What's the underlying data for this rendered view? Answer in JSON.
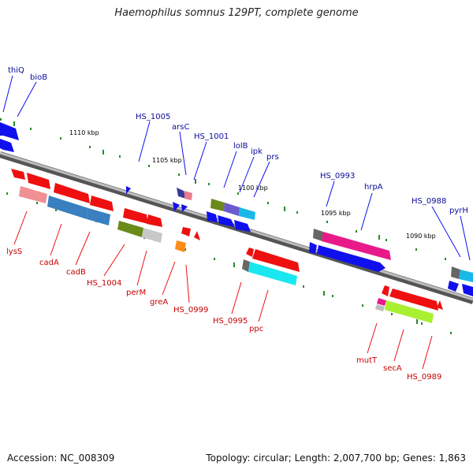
{
  "header": {
    "title": "Haemophilus somnus 129PT, complete genome"
  },
  "footer": {
    "accession": "Accession: NC_008309",
    "topology": "Topology: circular; Length: 2,007,700 bp; Genes: 1,863"
  },
  "kbp_ticks": [
    "1110 kbp",
    "1105 kbp",
    "1100 kbp",
    "1095 kbp",
    "1090 kbp"
  ],
  "upper_labels": [
    "thiQ",
    "bioB",
    "HS_1005",
    "arsC",
    "HS_1001",
    "lolB",
    "ipk",
    "prs",
    "HS_0993",
    "hrpA",
    "HS_0988",
    "pyrH"
  ],
  "lower_labels": [
    "lysS",
    "cadA",
    "cadB",
    "HS_1004",
    "perM",
    "greA",
    "HS_0999",
    "HS_0995",
    "ppc",
    "mutT",
    "secA",
    "HS_0989"
  ],
  "colors": {
    "forward_gene": "#1010ee",
    "reverse_gene": "#ee1010",
    "upper_label": "#0a0a9a",
    "lower_label": "#c80000",
    "backbone": "#888888",
    "tick_mark": "#2a8a2a"
  }
}
